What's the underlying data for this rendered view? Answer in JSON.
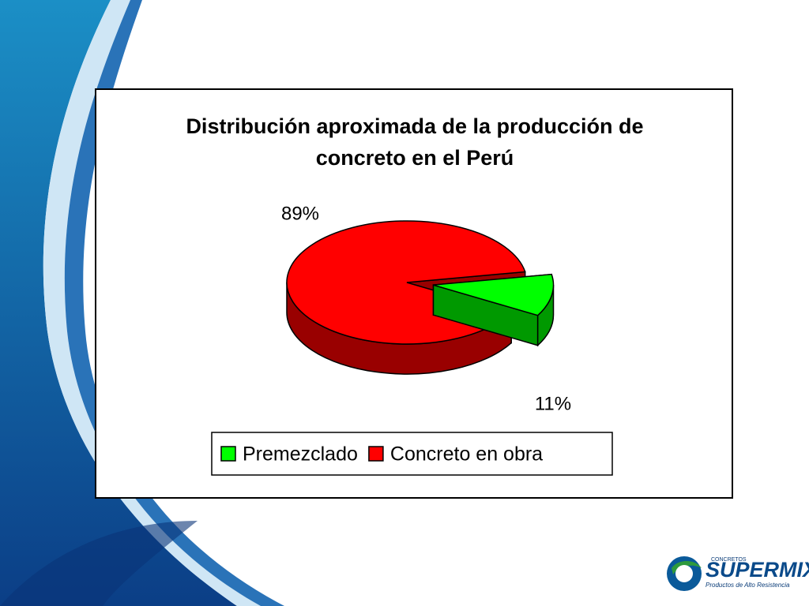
{
  "chart_data": {
    "type": "pie",
    "title": "Distribución aproximada de la producción de concreto en el Perú",
    "categories": [
      "Premezclado",
      "Concreto en obra"
    ],
    "values": [
      11,
      89
    ],
    "value_labels": [
      "11%",
      "89%"
    ],
    "colors": [
      "#00ff00",
      "#ff0000"
    ],
    "legend": "bottom"
  },
  "logo": {
    "small": "CONCRETOS",
    "brand": "SUPERMIX",
    "tagline": "Productos de Alto Resistencia"
  }
}
